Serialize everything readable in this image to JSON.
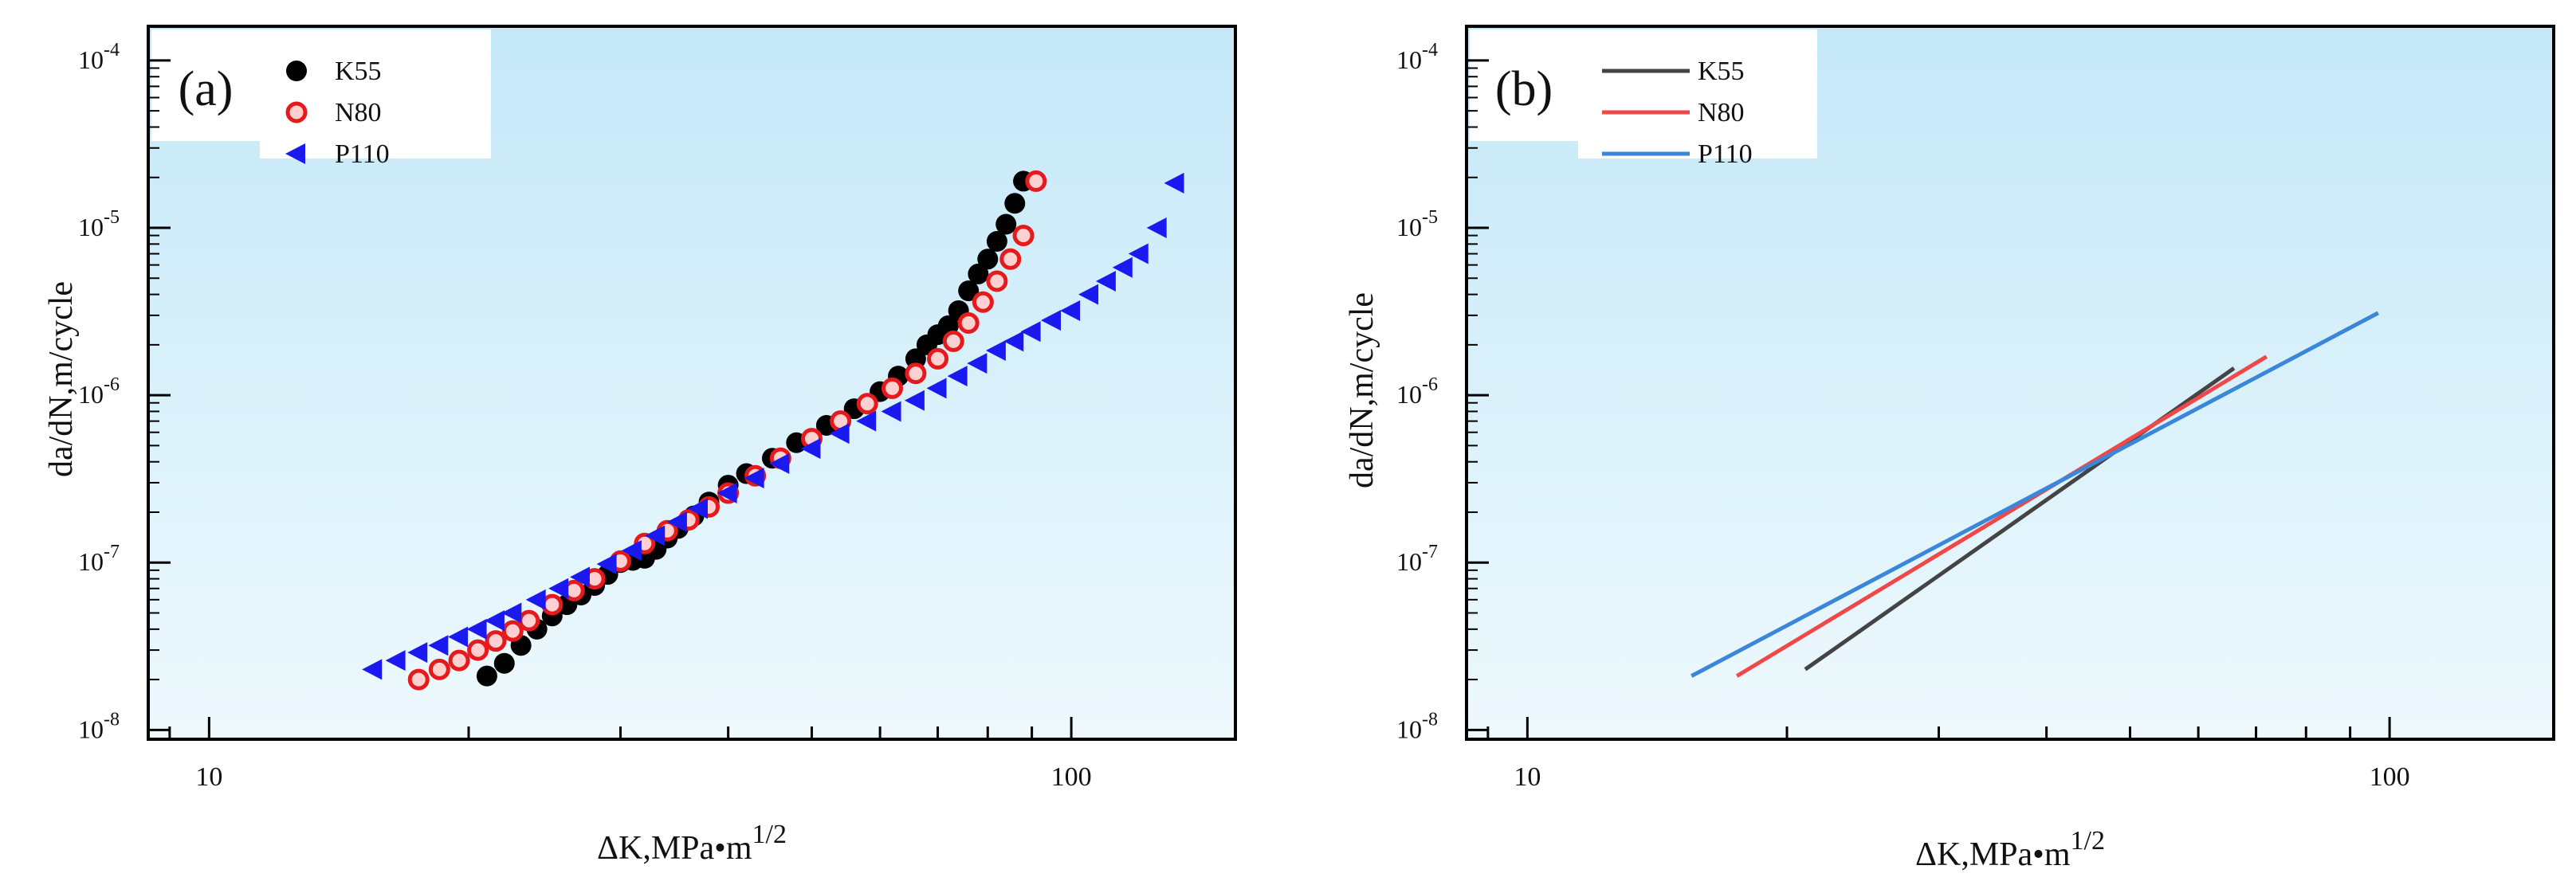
{
  "chart_data": [
    {
      "type": "scatter",
      "panel_label": "(a)",
      "xlabel": "ΔK,MPa•m",
      "xlabel_sup": "1/2",
      "ylabel": "da/dN,m/cycle",
      "x_scale": "log",
      "y_scale": "log",
      "xlim": [
        8.5,
        155
      ],
      "ylim": [
        8.8e-09,
        0.00016
      ],
      "x_ticks": [
        {
          "value": 10,
          "label": "10"
        },
        {
          "value": 100,
          "label": "100"
        }
      ],
      "y_ticks": [
        {
          "value": 1e-08,
          "label": "10",
          "exp": "-8"
        },
        {
          "value": 1e-07,
          "label": "10",
          "exp": "-7"
        },
        {
          "value": 1e-06,
          "label": "10",
          "exp": "-6"
        },
        {
          "value": 1e-05,
          "label": "10",
          "exp": "-5"
        },
        {
          "value": 0.0001,
          "label": "10",
          "exp": "-4"
        }
      ],
      "grid": false,
      "legend_position": "top-left",
      "series": [
        {
          "name": "K55",
          "color": "#000000",
          "marker": "circle",
          "x": [
            21.0,
            22.0,
            23.0,
            24.0,
            25.0,
            26.0,
            27.0,
            28.0,
            29.0,
            30.0,
            31.0,
            32.0,
            33.0,
            34.0,
            35.0,
            36.5,
            38.0,
            40.0,
            42.0,
            45.0,
            48.0,
            52.0,
            56.0,
            60.0,
            63.0,
            66.0,
            68.0,
            70.0,
            72.0,
            74.0,
            76.0,
            78.0,
            80.0,
            82.0,
            84.0,
            86.0,
            88.0
          ],
          "y": [
            2.1e-08,
            2.5e-08,
            3.2e-08,
            4e-08,
            4.8e-08,
            5.6e-08,
            6.4e-08,
            7.3e-08,
            8.5e-08,
            1e-07,
            1.03e-07,
            1.06e-07,
            1.2e-07,
            1.4e-07,
            1.6e-07,
            1.9e-07,
            2.3e-07,
            2.9e-07,
            3.4e-07,
            4.2e-07,
            5.2e-07,
            6.6e-07,
            8.3e-07,
            1.05e-06,
            1.3e-06,
            1.65e-06,
            2e-06,
            2.3e-06,
            2.6e-06,
            3.2e-06,
            4.2e-06,
            5.3e-06,
            6.5e-06,
            8.3e-06,
            1.05e-05,
            1.4e-05,
            1.9e-05
          ]
        },
        {
          "name": "N80",
          "color": "#e41a1c",
          "marker": "circle-open",
          "x": [
            17.5,
            18.5,
            19.5,
            20.5,
            21.5,
            22.5,
            23.5,
            25.0,
            26.5,
            28.0,
            30.0,
            32.0,
            34.0,
            36.0,
            38.0,
            40.0,
            43.0,
            46.0,
            50.0,
            54.0,
            58.0,
            62.0,
            66.0,
            70.0,
            73.0,
            76.0,
            79.0,
            82.0,
            85.0,
            88.0,
            91.0
          ],
          "y": [
            2e-08,
            2.3e-08,
            2.6e-08,
            3e-08,
            3.4e-08,
            3.9e-08,
            4.5e-08,
            5.6e-08,
            6.8e-08,
            8e-08,
            1.02e-07,
            1.3e-07,
            1.55e-07,
            1.8e-07,
            2.15e-07,
            2.6e-07,
            3.3e-07,
            4.2e-07,
            5.5e-07,
            7e-07,
            8.9e-07,
            1.1e-06,
            1.35e-06,
            1.65e-06,
            2.1e-06,
            2.7e-06,
            3.6e-06,
            4.8e-06,
            6.5e-06,
            9e-06,
            1.9e-05
          ]
        },
        {
          "name": "P110",
          "color": "#1a1af0",
          "marker": "triangle-left",
          "x": [
            15.5,
            16.5,
            17.5,
            18.5,
            19.5,
            20.5,
            21.5,
            22.5,
            24.0,
            25.5,
            27.0,
            29.0,
            31.0,
            33.0,
            35.0,
            37.0,
            40.0,
            43.0,
            46.0,
            50.0,
            54.0,
            58.0,
            62.0,
            66.0,
            70.0,
            74.0,
            78.0,
            82.0,
            86.0,
            90.0,
            95.0,
            100.0,
            105.0,
            110.0,
            115.0,
            120.0,
            126.0,
            132.0
          ],
          "y": [
            2.3e-08,
            2.6e-08,
            2.9e-08,
            3.2e-08,
            3.6e-08,
            4e-08,
            4.5e-08,
            5e-08,
            6e-08,
            7e-08,
            8.2e-08,
            9.8e-08,
            1.18e-07,
            1.45e-07,
            1.75e-07,
            2.1e-07,
            2.6e-07,
            3.2e-07,
            3.9e-07,
            4.8e-07,
            5.9e-07,
            7e-07,
            8e-07,
            9.3e-07,
            1.1e-06,
            1.3e-06,
            1.55e-06,
            1.85e-06,
            2.1e-06,
            2.4e-06,
            2.8e-06,
            3.2e-06,
            4e-06,
            4.8e-06,
            5.8e-06,
            7e-06,
            1e-05,
            1.85e-05
          ]
        }
      ]
    },
    {
      "type": "line",
      "panel_label": "(b)",
      "xlabel": "ΔK,MPa•m",
      "xlabel_sup": "1/2",
      "ylabel": "da/dN,m/cycle",
      "x_scale": "log",
      "y_scale": "log",
      "xlim": [
        8.5,
        155
      ],
      "ylim": [
        8.8e-09,
        0.00016
      ],
      "x_ticks": [
        {
          "value": 10,
          "label": "10"
        },
        {
          "value": 100,
          "label": "100"
        }
      ],
      "y_ticks": [
        {
          "value": 1e-08,
          "label": "10",
          "exp": "-8"
        },
        {
          "value": 1e-07,
          "label": "10",
          "exp": "-7"
        },
        {
          "value": 1e-06,
          "label": "10",
          "exp": "-6"
        },
        {
          "value": 1e-05,
          "label": "10",
          "exp": "-5"
        },
        {
          "value": 0.0001,
          "label": "10",
          "exp": "-4"
        }
      ],
      "grid": false,
      "legend_position": "top-left",
      "series": [
        {
          "name": "K55",
          "color": "#444444",
          "x": [
            21.0,
            66.0
          ],
          "y": [
            2.3e-08,
            1.45e-06
          ]
        },
        {
          "name": "N80",
          "color": "#f04848",
          "x": [
            17.5,
            72.0
          ],
          "y": [
            2.1e-08,
            1.7e-06
          ]
        },
        {
          "name": "P110",
          "color": "#3a86d8",
          "x": [
            15.5,
            97.0
          ],
          "y": [
            2.1e-08,
            3.1e-06
          ]
        }
      ]
    }
  ]
}
